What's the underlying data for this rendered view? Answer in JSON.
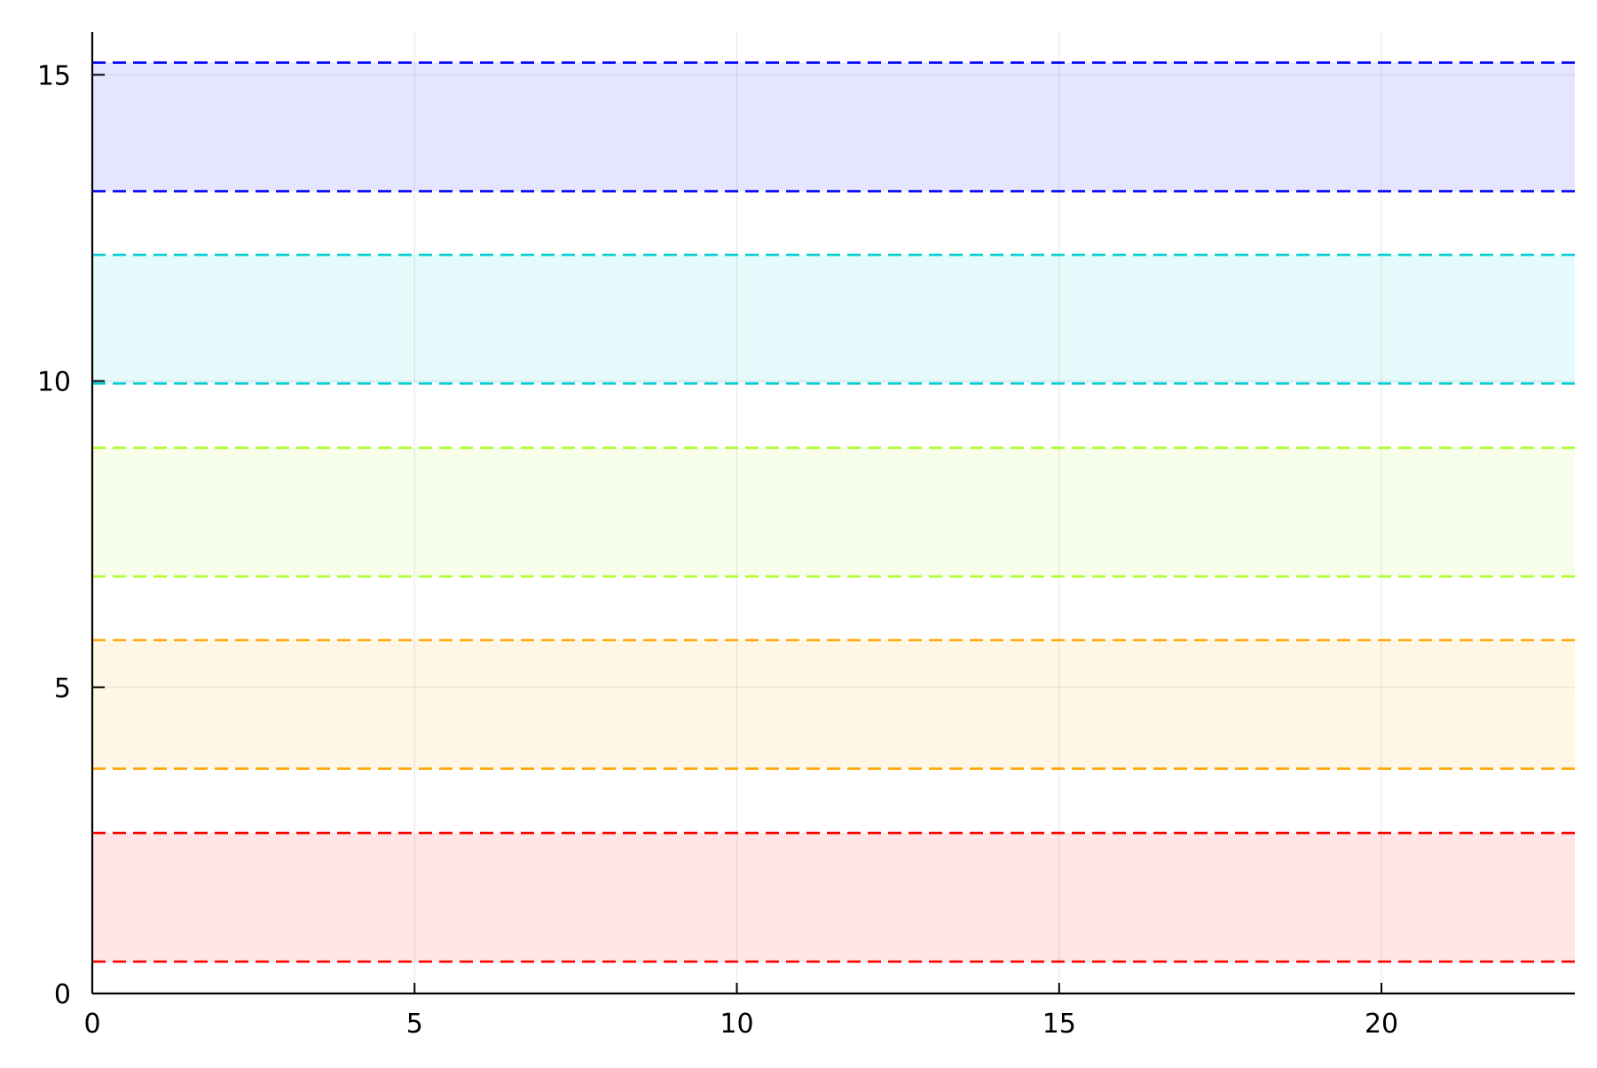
{
  "chart_data": {
    "type": "area",
    "title": "",
    "xlabel": "",
    "ylabel": "",
    "xlim": [
      0,
      23
    ],
    "ylim": [
      0,
      15.7
    ],
    "x_ticks": [
      0,
      5,
      10,
      15,
      20
    ],
    "y_ticks": [
      0,
      5,
      10,
      15
    ],
    "x_tick_labels": [
      "0",
      "5",
      "10",
      "15",
      "20"
    ],
    "y_tick_labels": [
      "0",
      "5",
      "10",
      "15"
    ],
    "grid": true,
    "legend": "none",
    "line_style": "dashed",
    "series": [
      {
        "color": "#ff0000",
        "fill": "#ffe5e5",
        "lower": 0.52,
        "upper": 2.62
      },
      {
        "color": "#ffa500",
        "fill": "#fff6e5",
        "lower": 3.67,
        "upper": 5.77
      },
      {
        "color": "#adff2f",
        "fill": "#f7ffea",
        "lower": 6.81,
        "upper": 8.91
      },
      {
        "color": "#00ced1",
        "fill": "#e5fafa",
        "lower": 9.96,
        "upper": 12.06
      },
      {
        "color": "#0000ff",
        "fill": "#e5e5ff",
        "lower": 13.1,
        "upper": 15.2
      }
    ]
  }
}
